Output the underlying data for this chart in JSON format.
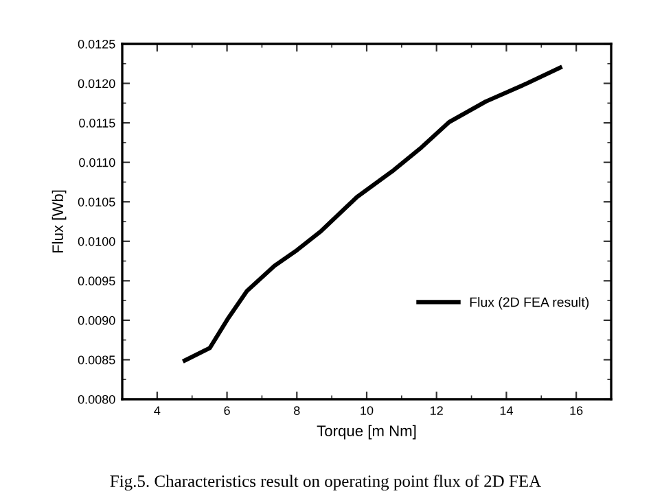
{
  "chart_data": {
    "type": "line",
    "xlabel": "Torque [m Nm]",
    "ylabel": "Flux [Wb]",
    "x": [
      4.79,
      5.51,
      6.04,
      6.57,
      7.36,
      8.01,
      8.67,
      9.72,
      10.77,
      11.57,
      12.36,
      13.41,
      14.59,
      15.54
    ],
    "series": [
      {
        "name": "Flux (2D FEA result)",
        "color": "#000000",
        "values": [
          0.00849,
          0.00865,
          0.00903,
          0.00937,
          0.00969,
          0.00989,
          0.01012,
          0.01056,
          0.0109,
          0.01119,
          0.01151,
          0.01177,
          0.012,
          0.0122
        ]
      }
    ],
    "xlim": [
      3,
      17
    ],
    "xticks": [
      4,
      6,
      8,
      10,
      12,
      14,
      16
    ],
    "ylim": [
      0.008,
      0.0125
    ],
    "yticks": [
      {
        "value": 0.008,
        "label": "0.0080"
      },
      {
        "value": 0.0085,
        "label": "0.0085"
      },
      {
        "value": 0.009,
        "label": "0.0090"
      },
      {
        "value": 0.0095,
        "label": "0.0095"
      },
      {
        "value": 0.01,
        "label": "0.0100"
      },
      {
        "value": 0.0105,
        "label": "0.0105"
      },
      {
        "value": 0.011,
        "label": "0.0110"
      },
      {
        "value": 0.0115,
        "label": "0.0115"
      },
      {
        "value": 0.012,
        "label": "0.0120"
      },
      {
        "value": 0.0125,
        "label": "0.0125"
      }
    ],
    "grid": false,
    "legend": "right",
    "marker": "none",
    "line_style": "solid",
    "annotations": [
      "Fig.5. Characteristics result on operating point flux of 2D FEA"
    ]
  }
}
